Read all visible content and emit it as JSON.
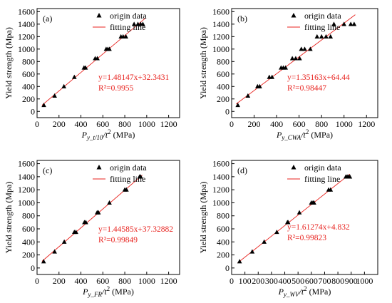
{
  "colors": {
    "fit": "#e8231f",
    "marker": "#000000",
    "axis": "#000000"
  },
  "chart_data": [
    {
      "type": "scatter",
      "panel_label": "(a)",
      "xlabel": {
        "base": "P",
        "sub": "y_t/10",
        "tail": "/t",
        "sup": "2",
        "unit": " (MPa)"
      },
      "ylabel": "Yield strength (Mpa)",
      "xlim": [
        0,
        1300
      ],
      "ylim": [
        -100,
        1650
      ],
      "xticks": [
        0,
        200,
        400,
        600,
        800,
        1000,
        1200
      ],
      "yticks": [
        0,
        200,
        400,
        600,
        800,
        1000,
        1200,
        1400,
        1600
      ],
      "legend": {
        "position": "top-right",
        "entries": [
          "origin data",
          "fitting line"
        ]
      },
      "series": [
        {
          "name": "origin data",
          "x": [
            62,
            160,
            245,
            340,
            428,
            442,
            530,
            550,
            630,
            645,
            660,
            765,
            785,
            810,
            885,
            920,
            945,
            965
          ],
          "y": [
            100,
            250,
            400,
            550,
            700,
            700,
            850,
            850,
            1000,
            1000,
            1000,
            1200,
            1200,
            1200,
            1400,
            1400,
            1400,
            1400
          ]
        }
      ],
      "fit": {
        "slope": 1.48147,
        "intercept": 32.3431,
        "x_range": [
          45,
          990
        ],
        "equation": "y=1.48147x+32.3431",
        "r2": "R²=0.9955"
      }
    },
    {
      "type": "scatter",
      "panel_label": "(b)",
      "xlabel": {
        "base": "P",
        "sub": "y_CWA",
        "tail": "/t",
        "sup": "2",
        "unit": " (MPa)"
      },
      "ylabel": "Yield strength (Mpa)",
      "xlim": [
        0,
        1300
      ],
      "ylim": [
        -100,
        1650
      ],
      "xticks": [
        0,
        200,
        400,
        600,
        800,
        1000,
        1200
      ],
      "yticks": [
        0,
        200,
        400,
        600,
        800,
        1000,
        1200,
        1400,
        1600
      ],
      "legend": {
        "position": "top-right",
        "entries": [
          "origin data",
          "fitting line"
        ]
      },
      "series": [
        {
          "name": "origin data",
          "x": [
            55,
            145,
            230,
            250,
            335,
            360,
            440,
            460,
            480,
            540,
            570,
            605,
            620,
            650,
            700,
            760,
            800,
            840,
            880,
            910,
            1000,
            1060,
            1090
          ],
          "y": [
            100,
            250,
            400,
            400,
            550,
            550,
            700,
            700,
            700,
            850,
            850,
            850,
            1000,
            1000,
            1000,
            1200,
            1200,
            1200,
            1200,
            1400,
            1400,
            1400,
            1400
          ]
        }
      ],
      "fit": {
        "slope": 1.35163,
        "intercept": 64.44,
        "x_range": [
          40,
          1100
        ],
        "equation": "y=1.35163x+64.44",
        "r2": "R²=0.98447"
      }
    },
    {
      "type": "scatter",
      "panel_label": "(c)",
      "xlabel": {
        "base": "P",
        "sub": "y_FR",
        "tail": "/t",
        "sup": "2",
        "unit": " (MPa)"
      },
      "ylabel": "Yield strength (Mpa)",
      "xlim": [
        0,
        1300
      ],
      "ylim": [
        -100,
        1650
      ],
      "xticks": [
        0,
        200,
        400,
        600,
        800,
        1000,
        1200
      ],
      "yticks": [
        0,
        200,
        400,
        600,
        800,
        1000,
        1200,
        1400,
        1600
      ],
      "legend": {
        "position": "top-right",
        "entries": [
          "origin data",
          "fitting line"
        ]
      },
      "series": [
        {
          "name": "origin data",
          "x": [
            60,
            160,
            248,
            340,
            355,
            432,
            445,
            548,
            560,
            660,
            800,
            815,
            935,
            945
          ],
          "y": [
            100,
            250,
            400,
            550,
            550,
            700,
            700,
            850,
            850,
            1000,
            1200,
            1200,
            1400,
            1400
          ]
        }
      ],
      "fit": {
        "slope": 1.44585,
        "intercept": 37.32882,
        "x_range": [
          45,
          960
        ],
        "equation": "y=1.44585x+37.32882",
        "r2": "R²=0.99849"
      }
    },
    {
      "type": "scatter",
      "panel_label": "(d)",
      "xlabel": {
        "base": "P",
        "sub": "y_WV",
        "tail": "/t",
        "sup": "2",
        "unit": " (MPa)"
      },
      "ylabel": "Yield strength (Mpa)",
      "xlim": [
        0,
        1100
      ],
      "ylim": [
        -100,
        1650
      ],
      "xticks": [
        0,
        100,
        200,
        300,
        400,
        500,
        600,
        700,
        800,
        900,
        1000
      ],
      "yticks": [
        0,
        200,
        400,
        600,
        800,
        1000,
        1200,
        1400,
        1600
      ],
      "legend": {
        "position": "top-right",
        "entries": [
          "origin data",
          "fitting line"
        ]
      },
      "series": [
        {
          "name": "origin data",
          "x": [
            60,
            155,
            245,
            340,
            420,
            425,
            510,
            600,
            612,
            620,
            730,
            745,
            860,
            870,
            880,
            890
          ],
          "y": [
            100,
            250,
            400,
            550,
            700,
            700,
            850,
            1000,
            1000,
            1000,
            1200,
            1200,
            1400,
            1400,
            1400,
            1400
          ]
        }
      ],
      "fit": {
        "slope": 1.61274,
        "intercept": 4.832,
        "x_range": [
          45,
          890
        ],
        "equation": "y=1.61274x+4.832",
        "r2": "R²=0.99823"
      }
    }
  ]
}
